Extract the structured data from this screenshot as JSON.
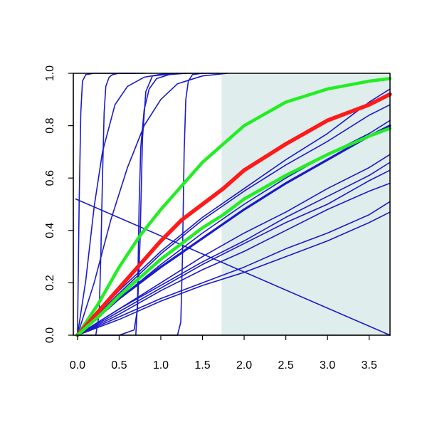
{
  "chart_data": {
    "type": "line",
    "title": "",
    "xlabel": "",
    "ylabel": "",
    "xlim": [
      -0.05,
      3.75
    ],
    "ylim": [
      0,
      1
    ],
    "x_ticks": [
      0.0,
      0.5,
      1.0,
      1.5,
      2.0,
      2.5,
      3.0,
      3.5
    ],
    "x_tick_labels": [
      "0.0",
      "0.5",
      "1.0",
      "1.5",
      "2.0",
      "2.5",
      "3.0",
      "3.5"
    ],
    "y_ticks": [
      0.0,
      0.2,
      0.4,
      0.6,
      0.8,
      1.0
    ],
    "y_tick_labels": [
      "0.0",
      "0.2",
      "0.4",
      "0.6",
      "0.8",
      "1.0"
    ],
    "shaded_region": {
      "x_from": 1.73,
      "x_to": 3.75,
      "color": "#e0eded"
    },
    "colors": {
      "blue": "#1a1acc",
      "red": "#ff1a1a",
      "green": "#22ee22"
    },
    "grid": false,
    "series": [
      {
        "color": "blue",
        "width": 1.6,
        "x": [
          0,
          0.02,
          0.04,
          0.06,
          0.1,
          0.2,
          0.4,
          0.8
        ],
        "y": [
          0,
          0.5,
          0.85,
          0.97,
          0.995,
          1,
          1,
          1
        ]
      },
      {
        "color": "blue",
        "width": 1.6,
        "x": [
          0,
          0.1,
          0.2,
          0.3,
          0.45,
          0.6,
          0.8,
          1.0,
          1.3,
          1.7
        ],
        "y": [
          0,
          0.21,
          0.49,
          0.7,
          0.88,
          0.95,
          0.985,
          0.996,
          1,
          1
        ]
      },
      {
        "color": "blue",
        "width": 1.6,
        "x": [
          0,
          0.2,
          0.4,
          0.6,
          0.8,
          1.0,
          1.2,
          1.5,
          1.8
        ],
        "y": [
          0,
          0.2,
          0.44,
          0.64,
          0.8,
          0.9,
          0.96,
          0.99,
          1
        ]
      },
      {
        "color": "blue",
        "width": 1.6,
        "x": [
          0.22,
          0.26,
          0.28,
          0.3,
          0.32,
          0.34,
          0.38,
          0.42,
          0.5,
          0.7
        ],
        "y": [
          0,
          0.08,
          0.3,
          0.6,
          0.85,
          0.95,
          0.985,
          0.995,
          1,
          1
        ]
      },
      {
        "color": "blue",
        "width": 1.6,
        "x": [
          0.0,
          0.3,
          0.5,
          0.68,
          0.72,
          0.75,
          0.78,
          0.82,
          0.9,
          1.2
        ],
        "y": [
          0,
          0,
          0,
          0.02,
          0.1,
          0.35,
          0.75,
          0.93,
          0.99,
          1
        ]
      },
      {
        "color": "blue",
        "width": 1.6,
        "x": [
          0.7,
          0.72,
          0.74,
          0.76,
          0.8,
          0.86,
          0.95,
          1.1,
          1.3
        ],
        "y": [
          0.0,
          0.12,
          0.5,
          0.72,
          0.86,
          0.94,
          0.98,
          0.995,
          1
        ]
      },
      {
        "color": "blue",
        "width": 1.6,
        "x": [
          1.0,
          1.2,
          1.24,
          1.26,
          1.28,
          1.3,
          1.33,
          1.38,
          1.5
        ],
        "y": [
          0,
          0,
          0.05,
          0.3,
          0.7,
          0.9,
          0.97,
          0.995,
          1
        ]
      },
      {
        "color": "blue",
        "width": 1.6,
        "x": [
          -0.02,
          3.75
        ],
        "y": [
          0.52,
          0.0
        ]
      },
      {
        "color": "blue",
        "width": 1.6,
        "x": [
          0,
          0.5,
          1.0,
          1.5,
          2.0,
          2.5,
          3.0,
          3.5,
          3.75
        ],
        "y": [
          0,
          0.17,
          0.32,
          0.45,
          0.56,
          0.67,
          0.77,
          0.89,
          0.94
        ]
      },
      {
        "color": "blue",
        "width": 1.6,
        "x": [
          0,
          0.5,
          1.0,
          1.5,
          2.0,
          2.5,
          3.0,
          3.5,
          3.75
        ],
        "y": [
          0,
          0.16,
          0.31,
          0.44,
          0.55,
          0.65,
          0.74,
          0.84,
          0.88
        ]
      },
      {
        "color": "blue",
        "width": 1.6,
        "x": [
          0,
          0.5,
          1.0,
          1.5,
          2.0,
          2.5,
          3.0,
          3.5,
          3.75
        ],
        "y": [
          0,
          0.14,
          0.27,
          0.39,
          0.5,
          0.6,
          0.69,
          0.77,
          0.82
        ]
      },
      {
        "color": "blue",
        "width": 3.2,
        "x": [
          0,
          0.5,
          1.0,
          1.5,
          2.0,
          2.5,
          3.0,
          3.5,
          3.75
        ],
        "y": [
          0,
          0.14,
          0.26,
          0.37,
          0.48,
          0.58,
          0.67,
          0.76,
          0.8
        ]
      },
      {
        "color": "blue",
        "width": 1.6,
        "x": [
          0,
          0.5,
          1.0,
          1.5,
          2.0,
          2.5,
          3.0,
          3.5,
          3.75
        ],
        "y": [
          0,
          0.1,
          0.2,
          0.3,
          0.39,
          0.47,
          0.56,
          0.64,
          0.69
        ]
      },
      {
        "color": "blue",
        "width": 1.6,
        "x": [
          0,
          0.5,
          1.0,
          1.5,
          2.0,
          2.5,
          3.0,
          3.5,
          3.75
        ],
        "y": [
          0,
          0.1,
          0.19,
          0.28,
          0.36,
          0.45,
          0.53,
          0.61,
          0.66
        ]
      },
      {
        "color": "blue",
        "width": 1.6,
        "x": [
          0,
          0.5,
          1.0,
          1.5,
          2.0,
          2.5,
          3.0,
          3.5,
          3.75
        ],
        "y": [
          0,
          0.09,
          0.18,
          0.27,
          0.35,
          0.43,
          0.5,
          0.59,
          0.63
        ]
      },
      {
        "color": "blue",
        "width": 1.6,
        "x": [
          0,
          0.5,
          1.0,
          1.5,
          2.0,
          2.5,
          3.0,
          3.5,
          3.75
        ],
        "y": [
          0,
          0.08,
          0.17,
          0.25,
          0.32,
          0.4,
          0.48,
          0.55,
          0.58
        ]
      },
      {
        "color": "blue",
        "width": 1.6,
        "x": [
          0,
          0.5,
          1.0,
          1.5,
          2.0,
          2.5,
          3.0,
          3.5,
          3.75
        ],
        "y": [
          0,
          0.07,
          0.14,
          0.2,
          0.26,
          0.33,
          0.39,
          0.46,
          0.51
        ]
      },
      {
        "color": "blue",
        "width": 1.6,
        "x": [
          0,
          0.5,
          1.0,
          1.5,
          2.0,
          2.5,
          3.0,
          3.5,
          3.75
        ],
        "y": [
          0,
          0.06,
          0.13,
          0.19,
          0.24,
          0.3,
          0.36,
          0.43,
          0.47
        ]
      },
      {
        "color": "green",
        "width": 4.5,
        "x": [
          0,
          0.25,
          0.5,
          0.75,
          1.0,
          1.25,
          1.5,
          1.75,
          2.0,
          2.5,
          3.0,
          3.5,
          3.75
        ],
        "y": [
          0,
          0.12,
          0.26,
          0.38,
          0.48,
          0.57,
          0.66,
          0.73,
          0.8,
          0.89,
          0.94,
          0.97,
          0.98
        ]
      },
      {
        "color": "red",
        "width": 5.5,
        "x": [
          0,
          0.25,
          0.5,
          0.75,
          1.0,
          1.25,
          1.5,
          1.75,
          2.0,
          2.5,
          3.0,
          3.5,
          3.75
        ],
        "y": [
          0,
          0.09,
          0.18,
          0.27,
          0.36,
          0.44,
          0.5,
          0.56,
          0.63,
          0.73,
          0.82,
          0.88,
          0.92
        ]
      },
      {
        "color": "green",
        "width": 4.5,
        "x": [
          0,
          0.25,
          0.5,
          0.75,
          1.0,
          1.25,
          1.5,
          1.75,
          2.0,
          2.5,
          3.0,
          3.5,
          3.75
        ],
        "y": [
          0,
          0.07,
          0.15,
          0.22,
          0.29,
          0.35,
          0.41,
          0.46,
          0.52,
          0.61,
          0.69,
          0.76,
          0.79
        ]
      }
    ]
  }
}
